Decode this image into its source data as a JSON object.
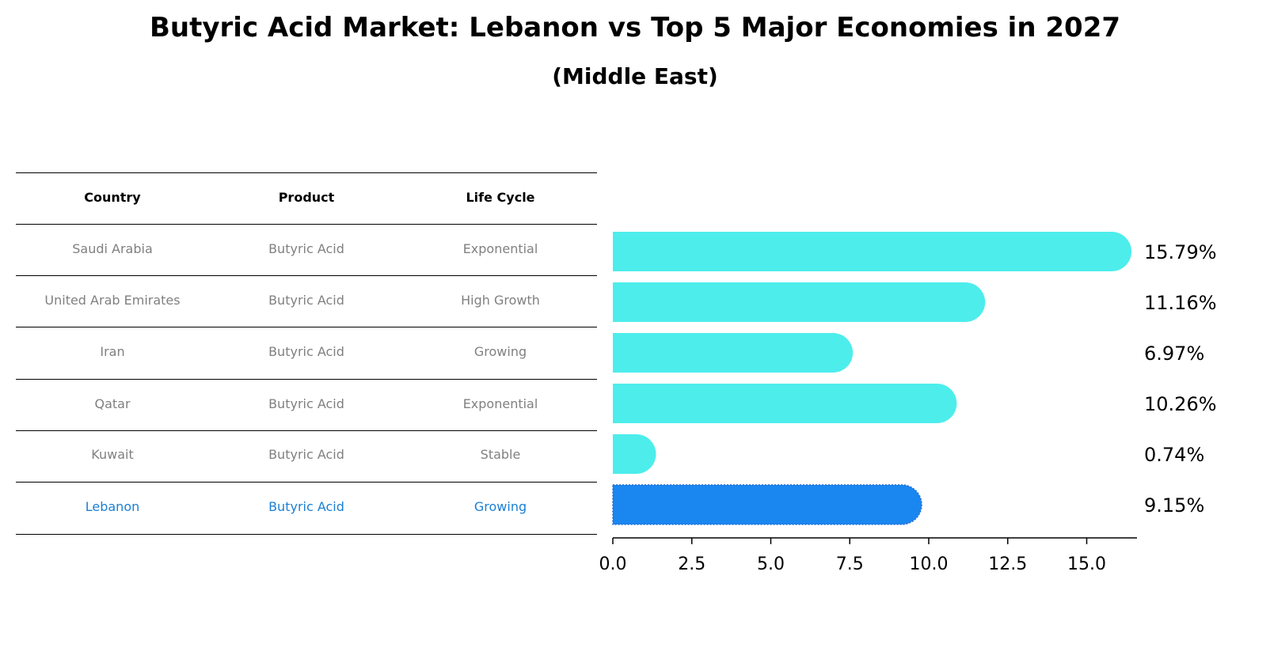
{
  "chart_data": {
    "type": "bar",
    "orientation": "horizontal",
    "title": "Butyric Acid Market: Lebanon vs Top 5 Major Economies in 2027",
    "subtitle": "(Middle East)",
    "categories": [
      "Saudi Arabia",
      "United Arab Emirates",
      "Iran",
      "Qatar",
      "Kuwait",
      "Lebanon"
    ],
    "values": [
      15.79,
      11.16,
      6.97,
      10.26,
      0.74,
      9.15
    ],
    "value_labels": [
      "15.79%",
      "11.16%",
      "6.97%",
      "10.26%",
      "0.74%",
      "9.15%"
    ],
    "highlight_category": "Lebanon",
    "xlim": [
      0,
      16.6
    ],
    "xticks": [
      0.0,
      2.5,
      5.0,
      7.5,
      10.0,
      12.5,
      15.0
    ],
    "xtick_labels": [
      "0.0",
      "2.5",
      "5.0",
      "7.5",
      "10.0",
      "12.5",
      "15.0"
    ],
    "grid": false,
    "colors": {
      "bar": "#4dedec",
      "highlight_bar": "#1a86f0",
      "highlight_text": "#1a7fd4",
      "body_text": "#808080"
    }
  },
  "table": {
    "headers": [
      "Country",
      "Product",
      "Life Cycle"
    ],
    "rows": [
      [
        "Saudi Arabia",
        "Butyric Acid",
        "Exponential"
      ],
      [
        "United Arab Emirates",
        "Butyric Acid",
        "High Growth"
      ],
      [
        "Iran",
        "Butyric Acid",
        "Growing"
      ],
      [
        "Qatar",
        "Butyric Acid",
        "Exponential"
      ],
      [
        "Kuwait",
        "Butyric Acid",
        "Stable"
      ],
      [
        "Lebanon",
        "Butyric Acid",
        "Growing"
      ]
    ]
  }
}
